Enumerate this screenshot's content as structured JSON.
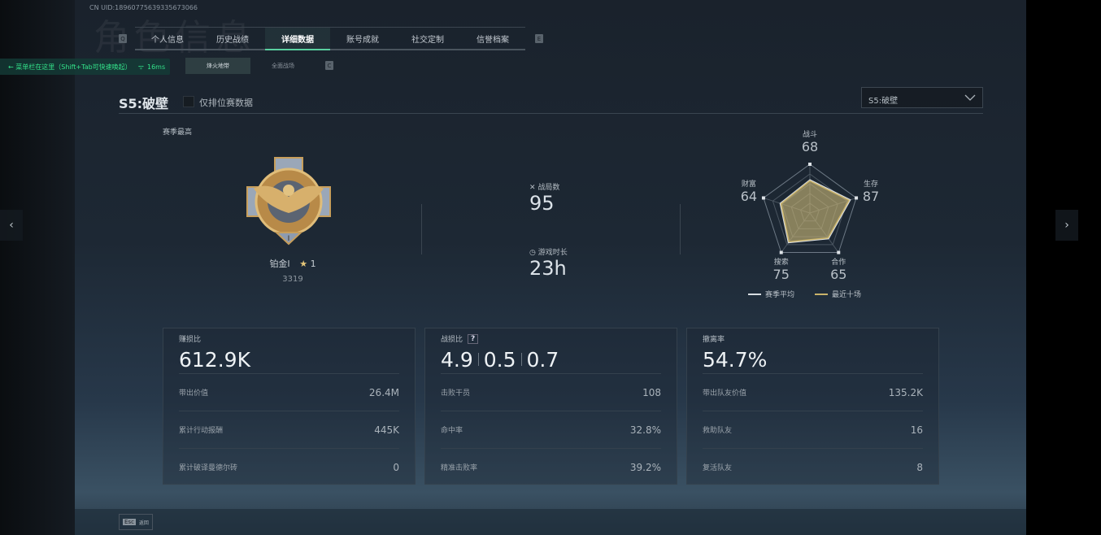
{
  "header": {
    "uid": "CN UID:18960775639335673066",
    "watermark": "角色信息",
    "prev_key": "Q",
    "next_key": "E",
    "tabs": [
      {
        "label": "个人信息"
      },
      {
        "label": "历史战绩"
      },
      {
        "label": "详细数据",
        "active": true
      },
      {
        "label": "账号成就"
      },
      {
        "label": "社交定制"
      },
      {
        "label": "信誉档案"
      }
    ]
  },
  "toast": {
    "text": "← 菜单栏在这里（Shift+Tab可快速唤起）",
    "ping": "16ms"
  },
  "subtabs": {
    "items": [
      {
        "label": "烽火地带",
        "active": true
      },
      {
        "label": "全面战场"
      }
    ],
    "key": "C"
  },
  "season": {
    "title": "S5:破壁",
    "ranked_only_label": "仅排位赛数据",
    "ranked_only_checked": false,
    "select_value": "S5:破壁"
  },
  "rank": {
    "section_label": "赛季最高",
    "name": "铂金I",
    "stars": "1",
    "score": "3319"
  },
  "summary": {
    "matches_label": "战局数",
    "matches": "95",
    "playtime_label": "游戏时长",
    "playtime": "23h"
  },
  "chart_data": {
    "type": "radar",
    "axes": [
      {
        "label": "战斗",
        "value": 68
      },
      {
        "label": "生存",
        "value": 87
      },
      {
        "label": "合作",
        "value": 65
      },
      {
        "label": "搜索",
        "value": 75
      },
      {
        "label": "财富",
        "value": 64
      }
    ],
    "range": [
      0,
      100
    ],
    "series": [
      {
        "name": "赛季平均",
        "color": "#d8dde2",
        "values": [
          68,
          87,
          65,
          75,
          64
        ]
      },
      {
        "name": "最近十场",
        "color": "#c9b36a",
        "values": [
          68,
          87,
          65,
          75,
          64
        ]
      }
    ]
  },
  "cards": [
    {
      "title": "赚损比",
      "big": [
        "612.9K"
      ],
      "rows": [
        {
          "label": "带出价值",
          "value": "26.4M"
        },
        {
          "label": "累计行动报酬",
          "value": "445K"
        },
        {
          "label": "累计破译曼德尔砖",
          "value": "0"
        }
      ]
    },
    {
      "title": "战损比",
      "help": "?",
      "big": [
        "4.9",
        "0.5",
        "0.7"
      ],
      "rows": [
        {
          "label": "击败干员",
          "value": "108"
        },
        {
          "label": "命中率",
          "value": "32.8%"
        },
        {
          "label": "精准击败率",
          "value": "39.2%"
        }
      ]
    },
    {
      "title": "撤离率",
      "big": [
        "54.7%"
      ],
      "rows": [
        {
          "label": "带出队友价值",
          "value": "135.2K"
        },
        {
          "label": "救助队友",
          "value": "16"
        },
        {
          "label": "复活队友",
          "value": "8"
        }
      ]
    }
  ],
  "footer": {
    "esc_key": "Esc",
    "back_label": "返回"
  },
  "nav": {
    "prev": "‹",
    "next": "›"
  }
}
